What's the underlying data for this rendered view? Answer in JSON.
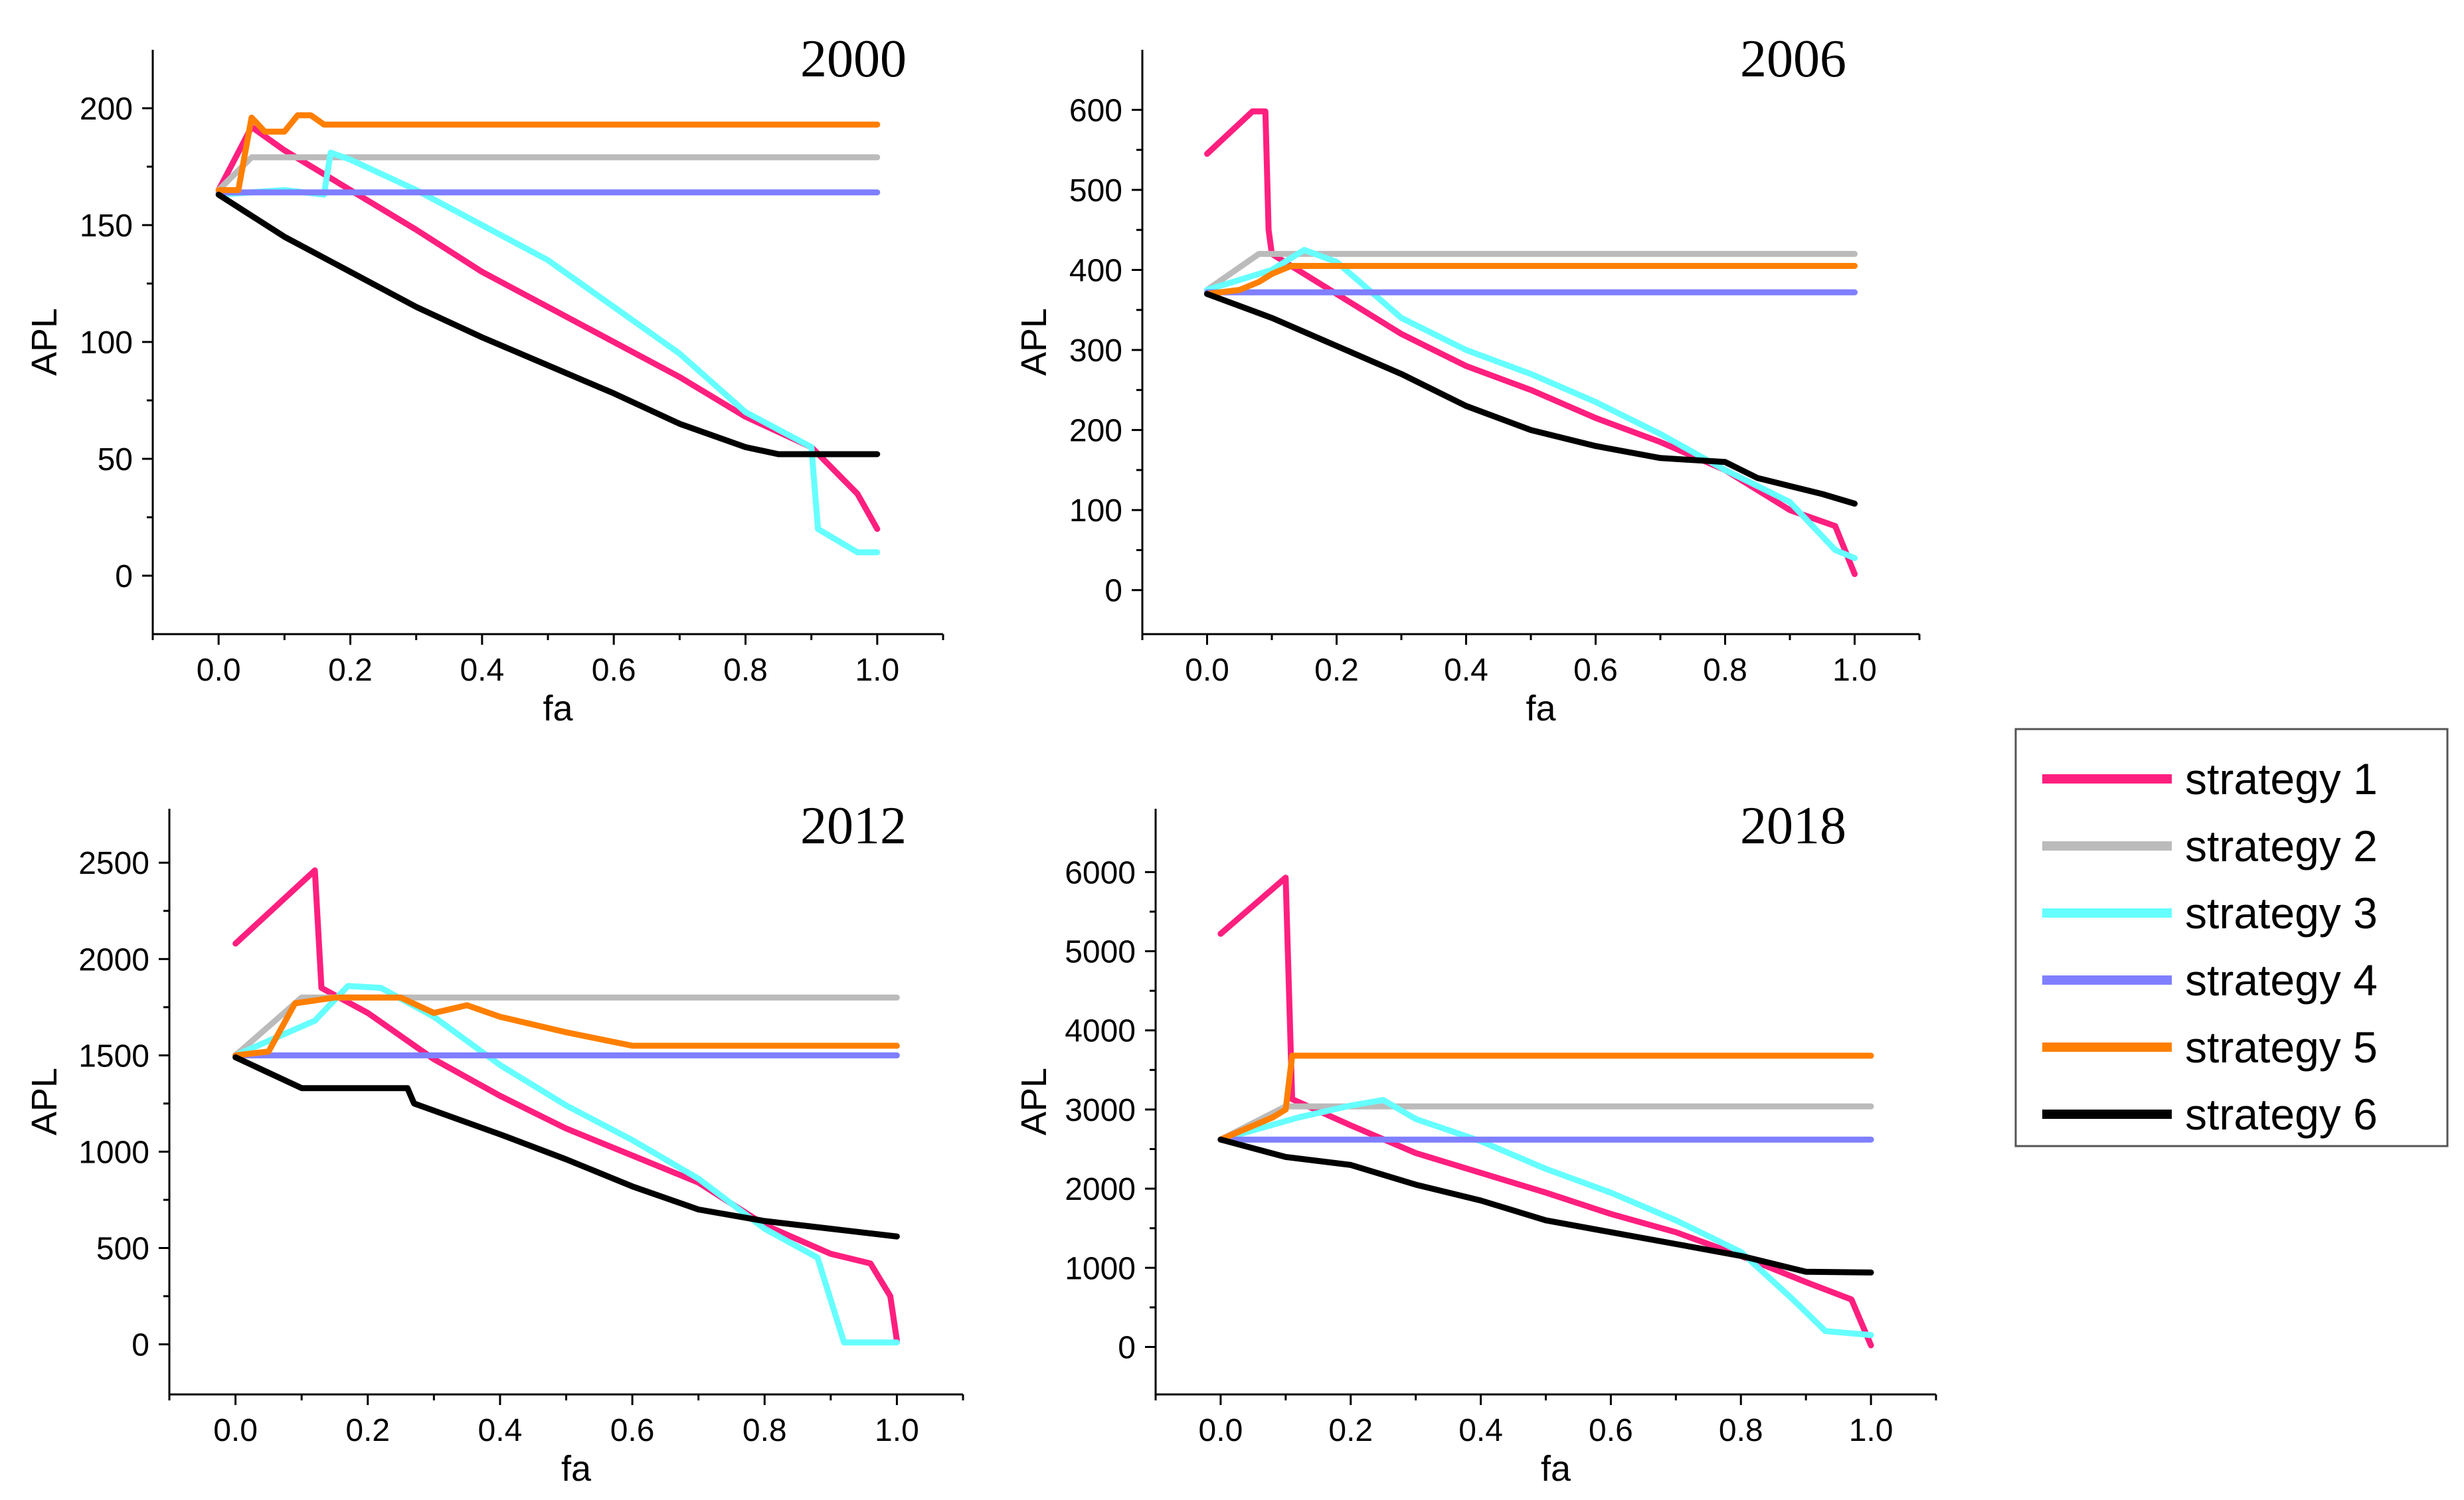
{
  "colors": {
    "strategy_1": "#ff1f7f",
    "strategy_2": "#bbbbbb",
    "strategy_3": "#66ffff",
    "strategy_4": "#7f7fff",
    "strategy_5": "#ff7f00",
    "strategy_6": "#000000"
  },
  "legend": [
    "strategy 1",
    "strategy 2",
    "strategy 3",
    "strategy 4",
    "strategy 5",
    "strategy 6"
  ],
  "chart_data": [
    {
      "type": "line",
      "title": "2000",
      "xlabel": "fa",
      "ylabel": "APL",
      "xlim": [
        -0.1,
        1.1
      ],
      "ylim": [
        -25,
        225
      ],
      "xticks": [
        "0.0",
        "0.2",
        "0.4",
        "0.6",
        "0.8",
        "1.0"
      ],
      "yticks": [
        "0",
        "50",
        "100",
        "150",
        "200"
      ],
      "series": [
        {
          "name": "strategy 1",
          "x": [
            0,
            0.05,
            0.1,
            0.2,
            0.3,
            0.4,
            0.5,
            0.6,
            0.7,
            0.8,
            0.9,
            0.97,
            1.0
          ],
          "y": [
            165,
            192,
            182,
            165,
            148,
            130,
            115,
            100,
            85,
            68,
            55,
            35,
            20
          ]
        },
        {
          "name": "strategy 2",
          "x": [
            0,
            0.05,
            1.0
          ],
          "y": [
            165,
            179,
            179
          ]
        },
        {
          "name": "strategy 3",
          "x": [
            0,
            0.1,
            0.16,
            0.17,
            0.2,
            0.3,
            0.4,
            0.5,
            0.6,
            0.7,
            0.8,
            0.9,
            0.91,
            0.97,
            1.0
          ],
          "y": [
            163,
            165,
            163,
            181,
            178,
            165,
            150,
            135,
            115,
            95,
            70,
            55,
            20,
            10,
            10
          ]
        },
        {
          "name": "strategy 4",
          "x": [
            0,
            1.0
          ],
          "y": [
            164,
            164
          ]
        },
        {
          "name": "strategy 5",
          "x": [
            0,
            0.03,
            0.05,
            0.07,
            0.1,
            0.12,
            0.14,
            0.16,
            1.0
          ],
          "y": [
            165,
            165,
            196,
            190,
            190,
            197,
            197,
            193,
            193
          ]
        },
        {
          "name": "strategy 6",
          "x": [
            0,
            0.1,
            0.2,
            0.3,
            0.4,
            0.5,
            0.6,
            0.7,
            0.8,
            0.85,
            1.0
          ],
          "y": [
            163,
            145,
            130,
            115,
            102,
            90,
            78,
            65,
            55,
            52,
            52
          ]
        }
      ]
    },
    {
      "type": "line",
      "title": "2006",
      "xlabel": "fa",
      "ylabel": "APL",
      "xlim": [
        -0.1,
        1.1
      ],
      "ylim": [
        -55,
        675
      ],
      "xticks": [
        "0.0",
        "0.2",
        "0.4",
        "0.6",
        "0.8",
        "1.0"
      ],
      "yticks": [
        "0",
        "100",
        "200",
        "300",
        "400",
        "500",
        "600"
      ],
      "series": [
        {
          "name": "strategy 1",
          "x": [
            0,
            0.07,
            0.09,
            0.095,
            0.1,
            0.2,
            0.3,
            0.4,
            0.5,
            0.6,
            0.7,
            0.8,
            0.9,
            0.97,
            1.0
          ],
          "y": [
            545,
            598,
            598,
            450,
            420,
            370,
            320,
            280,
            250,
            215,
            185,
            150,
            100,
            80,
            20
          ]
        },
        {
          "name": "strategy 2",
          "x": [
            0,
            0.08,
            1.0
          ],
          "y": [
            375,
            420,
            420
          ]
        },
        {
          "name": "strategy 3",
          "x": [
            0,
            0.1,
            0.15,
            0.2,
            0.3,
            0.4,
            0.5,
            0.6,
            0.7,
            0.8,
            0.9,
            0.97,
            1.0
          ],
          "y": [
            375,
            400,
            425,
            410,
            340,
            300,
            270,
            235,
            195,
            150,
            110,
            50,
            40
          ]
        },
        {
          "name": "strategy 4",
          "x": [
            0,
            1.0
          ],
          "y": [
            372,
            372
          ]
        },
        {
          "name": "strategy 5",
          "x": [
            0,
            0.05,
            0.08,
            0.1,
            0.13,
            0.15,
            1.0
          ],
          "y": [
            370,
            375,
            385,
            395,
            405,
            405,
            405
          ]
        },
        {
          "name": "strategy 6",
          "x": [
            0,
            0.1,
            0.2,
            0.3,
            0.4,
            0.5,
            0.6,
            0.7,
            0.8,
            0.85,
            0.9,
            0.95,
            1.0
          ],
          "y": [
            370,
            340,
            305,
            270,
            230,
            200,
            180,
            165,
            160,
            140,
            130,
            120,
            108
          ]
        }
      ]
    },
    {
      "type": "line",
      "title": "2012",
      "xlabel": "fa",
      "ylabel": "APL",
      "xlim": [
        -0.1,
        1.1
      ],
      "ylim": [
        -260,
        2780
      ],
      "xticks": [
        "0.0",
        "0.2",
        "0.4",
        "0.6",
        "0.8",
        "1.0"
      ],
      "yticks": [
        "0",
        "500",
        "1000",
        "1500",
        "2000",
        "2500"
      ],
      "series": [
        {
          "name": "strategy 1",
          "x": [
            0,
            0.12,
            0.13,
            0.2,
            0.3,
            0.4,
            0.5,
            0.6,
            0.7,
            0.8,
            0.9,
            0.96,
            0.99,
            1.0
          ],
          "y": [
            2080,
            2460,
            1850,
            1720,
            1480,
            1290,
            1120,
            980,
            840,
            620,
            470,
            420,
            250,
            20
          ]
        },
        {
          "name": "strategy 2",
          "x": [
            0,
            0.1,
            1.0
          ],
          "y": [
            1500,
            1800,
            1800
          ]
        },
        {
          "name": "strategy 3",
          "x": [
            0,
            0.12,
            0.17,
            0.22,
            0.3,
            0.4,
            0.5,
            0.6,
            0.7,
            0.8,
            0.88,
            0.92,
            1.0
          ],
          "y": [
            1500,
            1680,
            1860,
            1850,
            1700,
            1450,
            1240,
            1060,
            860,
            600,
            450,
            10,
            10
          ]
        },
        {
          "name": "strategy 4",
          "x": [
            0,
            1.0
          ],
          "y": [
            1500,
            1500
          ]
        },
        {
          "name": "strategy 5",
          "x": [
            0,
            0.05,
            0.09,
            0.15,
            0.25,
            0.3,
            0.35,
            0.4,
            0.5,
            0.6,
            1.0
          ],
          "y": [
            1500,
            1520,
            1770,
            1800,
            1800,
            1720,
            1760,
            1700,
            1620,
            1550,
            1550
          ]
        },
        {
          "name": "strategy 6",
          "x": [
            0,
            0.1,
            0.26,
            0.27,
            0.4,
            0.5,
            0.6,
            0.7,
            0.8,
            0.9,
            1.0
          ],
          "y": [
            1490,
            1330,
            1330,
            1250,
            1090,
            960,
            820,
            700,
            640,
            600,
            560
          ]
        }
      ]
    },
    {
      "type": "line",
      "title": "2018",
      "xlabel": "fa",
      "ylabel": "APL",
      "xlim": [
        -0.1,
        1.1
      ],
      "ylim": [
        -600,
        6800
      ],
      "xticks": [
        "0.0",
        "0.2",
        "0.4",
        "0.6",
        "0.8",
        "1.0"
      ],
      "yticks": [
        "0",
        "1000",
        "2000",
        "3000",
        "4000",
        "5000",
        "6000"
      ],
      "series": [
        {
          "name": "strategy 1",
          "x": [
            0,
            0.1,
            0.11,
            0.2,
            0.3,
            0.4,
            0.5,
            0.6,
            0.7,
            0.8,
            0.9,
            0.97,
            1.0
          ],
          "y": [
            5220,
            5930,
            3130,
            2800,
            2450,
            2200,
            1950,
            1680,
            1450,
            1150,
            820,
            600,
            20
          ]
        },
        {
          "name": "strategy 2",
          "x": [
            0,
            0.1,
            1.0
          ],
          "y": [
            2620,
            3040,
            3040
          ]
        },
        {
          "name": "strategy 3",
          "x": [
            0,
            0.12,
            0.2,
            0.25,
            0.3,
            0.4,
            0.5,
            0.6,
            0.7,
            0.8,
            0.88,
            0.93,
            1.0
          ],
          "y": [
            2620,
            2900,
            3050,
            3120,
            2880,
            2600,
            2250,
            1950,
            1600,
            1200,
            600,
            200,
            150
          ]
        },
        {
          "name": "strategy 4",
          "x": [
            0,
            1.0
          ],
          "y": [
            2620,
            2620
          ]
        },
        {
          "name": "strategy 5",
          "x": [
            0,
            0.08,
            0.1,
            0.11,
            1.0
          ],
          "y": [
            2620,
            2900,
            3000,
            3680,
            3680
          ]
        },
        {
          "name": "strategy 6",
          "x": [
            0,
            0.1,
            0.2,
            0.3,
            0.4,
            0.5,
            0.6,
            0.7,
            0.8,
            0.9,
            1.0
          ],
          "y": [
            2620,
            2400,
            2300,
            2050,
            1850,
            1600,
            1450,
            1300,
            1150,
            950,
            940
          ]
        }
      ]
    }
  ]
}
